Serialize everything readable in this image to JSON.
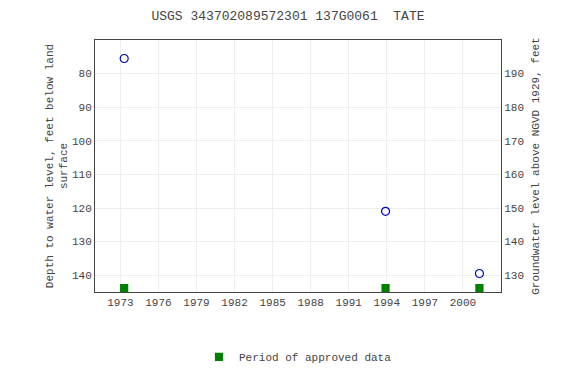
{
  "chart_data": {
    "type": "scatter",
    "title": "USGS 343702089572301 137G0061  TATE",
    "y_label": "Depth to water level, feet below land\nsurface",
    "y2_label": "Groundwater level above NGVD 1929, feet",
    "xlim": [
      1971.0,
      2003.0
    ],
    "xticks": [
      1973,
      1976,
      1979,
      1982,
      1985,
      1988,
      1991,
      1994,
      1997,
      2000
    ],
    "ylim": [
      145,
      70
    ],
    "yticks": [
      80,
      90,
      100,
      110,
      120,
      130,
      140
    ],
    "y2lim": [
      125,
      200
    ],
    "y2ticks": [
      130,
      140,
      150,
      160,
      170,
      180,
      190
    ],
    "grid": true,
    "legend": "bottom",
    "series": [
      {
        "x": [
          1973.3,
          1993.9,
          2001.3
        ],
        "values": [
          75.5,
          121.0,
          139.5
        ],
        "color": "#0000cc",
        "marker": "circle-open"
      },
      {
        "name": "Period of approved data",
        "color": "#008000",
        "marker": "square",
        "x": [
          1973.3,
          1993.9,
          2001.3
        ]
      }
    ]
  }
}
